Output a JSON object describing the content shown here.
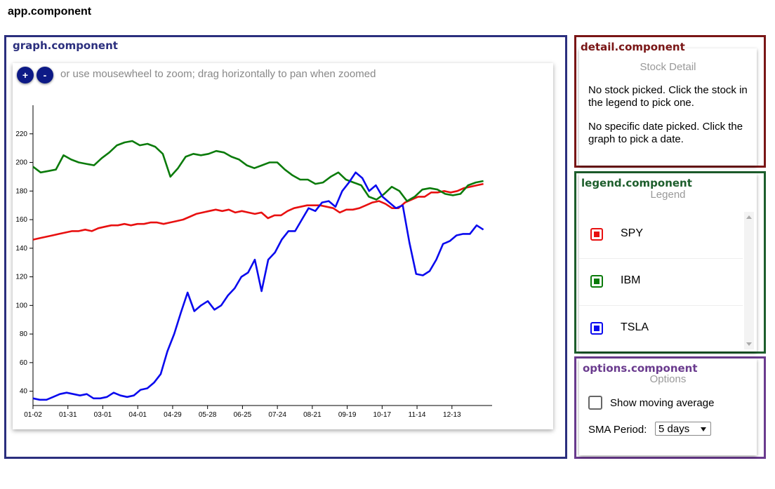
{
  "app": {
    "title": "app.component"
  },
  "graph": {
    "component_title": "graph.component",
    "zoom_in_label": "+",
    "zoom_out_label": "-",
    "zoom_hint": "or use mousewheel to zoom; drag horizontally to pan when zoomed"
  },
  "detail": {
    "component_title": "detail.component",
    "heading": "Stock Detail",
    "no_stock_text": "No stock picked. Click the stock in the legend to pick one.",
    "no_date_text": "No specific date picked. Click the graph to pick a date."
  },
  "legend": {
    "component_title": "legend.component",
    "heading": "Legend",
    "items": [
      {
        "label": "SPY",
        "color": "#e81010"
      },
      {
        "label": "IBM",
        "color": "#0b7b0b"
      },
      {
        "label": "TSLA",
        "color": "#0a0aee"
      }
    ]
  },
  "options": {
    "component_title": "options.component",
    "heading": "Options",
    "moving_average_label": "Show moving average",
    "moving_average_checked": false,
    "sma_period_label": "SMA Period:",
    "sma_period_value": "5 days"
  },
  "chart_data": {
    "type": "line",
    "title": "",
    "xlabel": "",
    "ylabel": "",
    "ylim": [
      30,
      240
    ],
    "yticks": [
      40,
      60,
      80,
      100,
      120,
      140,
      160,
      180,
      200,
      220
    ],
    "xticks": [
      "01-02",
      "01-31",
      "03-01",
      "04-01",
      "04-29",
      "05-28",
      "06-25",
      "07-24",
      "08-21",
      "09-19",
      "10-17",
      "11-14",
      "12-13"
    ],
    "grid": false,
    "x_step_per_tick": 4,
    "series": [
      {
        "name": "SPY",
        "color": "#e81010",
        "values": [
          146,
          147,
          148,
          149,
          150,
          151,
          152,
          152,
          153,
          152,
          154,
          155,
          156,
          156,
          157,
          156,
          157,
          157,
          158,
          158,
          157,
          158,
          159,
          160,
          162,
          164,
          165,
          166,
          167,
          166,
          167,
          165,
          166,
          165,
          164,
          165,
          161,
          163,
          163,
          166,
          168,
          169,
          170,
          170,
          170,
          169,
          168,
          165,
          167,
          167,
          168,
          170,
          172,
          173,
          171,
          168,
          168,
          172,
          174,
          176,
          176,
          179,
          179,
          180,
          179,
          180,
          182,
          183,
          184,
          185
        ]
      },
      {
        "name": "IBM",
        "color": "#0b7b0b",
        "values": [
          197,
          193,
          194,
          195,
          205,
          202,
          200,
          199,
          198,
          203,
          207,
          212,
          214,
          215,
          212,
          213,
          211,
          206,
          190,
          196,
          204,
          206,
          205,
          206,
          208,
          207,
          204,
          202,
          198,
          196,
          198,
          200,
          200,
          195,
          191,
          188,
          188,
          185,
          186,
          190,
          193,
          188,
          186,
          184,
          176,
          174,
          178,
          183,
          180,
          173,
          176,
          181,
          182,
          181,
          178,
          177,
          178,
          184,
          186,
          187
        ]
      },
      {
        "name": "TSLA",
        "color": "#0a0aee",
        "values": [
          35,
          34,
          34,
          36,
          38,
          39,
          38,
          37,
          38,
          35,
          35,
          36,
          39,
          37,
          36,
          37,
          41,
          42,
          46,
          52,
          68,
          80,
          95,
          109,
          96,
          100,
          103,
          97,
          100,
          107,
          112,
          120,
          123,
          132,
          110,
          132,
          137,
          146,
          152,
          152,
          160,
          168,
          166,
          172,
          173,
          169,
          180,
          186,
          193,
          189,
          180,
          184,
          176,
          172,
          168,
          170,
          144,
          122,
          121,
          124,
          132,
          143,
          145,
          149,
          150,
          150,
          156,
          153
        ]
      }
    ]
  }
}
